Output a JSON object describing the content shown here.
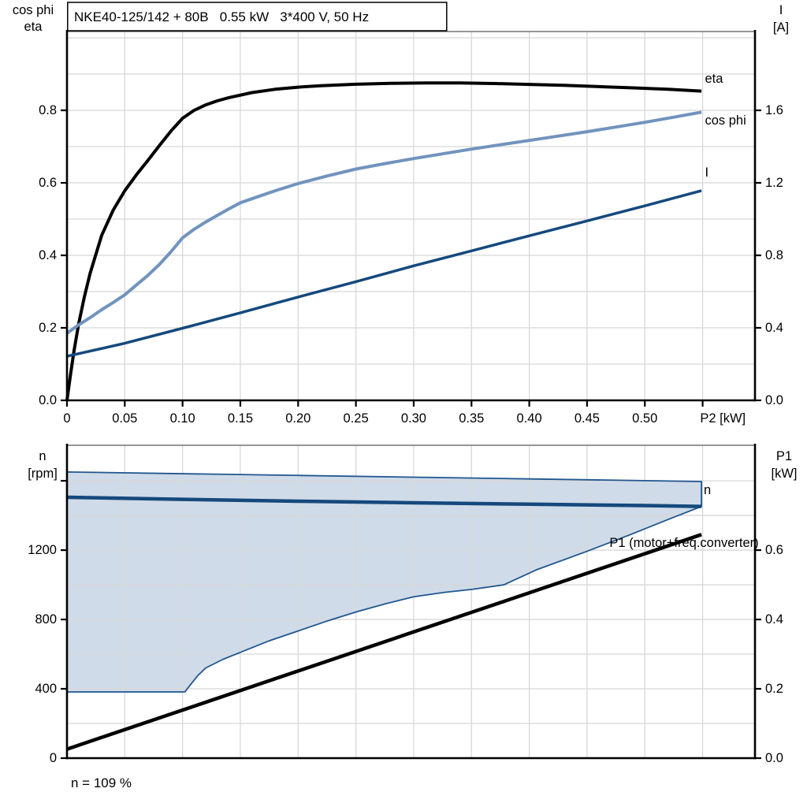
{
  "panel": {
    "background": "#ffffff"
  },
  "colors": {
    "black": "#000000",
    "steel_blue": "#7193BE",
    "dark_blue": "#15497D",
    "region_fill": "#CFDBE8",
    "region_border": "#20568F",
    "grid": "#D8D8D8",
    "frame": "#595959"
  },
  "chart_data": [
    {
      "id": "top",
      "type": "line",
      "title": "NKE40-125/142 + 80B   0.55 kW   3*400 V, 50 Hz",
      "x_axis": {
        "label": "P2 [kW]",
        "label_x": 0.5675,
        "range": [
          0,
          0.5953
        ],
        "tick_labels": [
          "0",
          "0.05",
          "0.10",
          "0.15",
          "0.20",
          "0.25",
          "0.30",
          "0.35",
          "0.40",
          "0.45",
          "0.50"
        ],
        "ticks_unlabeled": [
          0.55
        ],
        "grid": [
          0.05,
          0.1,
          0.15,
          0.2,
          0.25,
          0.3,
          0.35,
          0.4,
          0.45,
          0.5,
          0.55
        ]
      },
      "left_axis": {
        "label_lines": [
          "cos phi",
          "eta"
        ],
        "range": [
          0,
          1.0174
        ],
        "tick_labels": [
          "0.0",
          "0.2",
          "0.4",
          "0.6",
          "0.8"
        ],
        "ticks_unlabeled": [],
        "grid": [
          0.1,
          0.2,
          0.3,
          0.4,
          0.5,
          0.6,
          0.7,
          0.8,
          0.9,
          1.0
        ]
      },
      "right_axis": {
        "label_lines": [
          "I",
          "[A]"
        ],
        "range": [
          0,
          2.0348
        ],
        "tick_labels": [
          "0.0",
          "0.4",
          "0.8",
          "1.2",
          "1.6"
        ],
        "ticks_unlabeled": []
      },
      "series": [
        {
          "name": "eta",
          "color": "#000000",
          "width": 4,
          "axis": "left",
          "label": {
            "text": "eta",
            "x": 0.552,
            "y": 0.887,
            "anchor": "start",
            "color": "#000000"
          },
          "points": [
            [
              0,
              0
            ],
            [
              0.003,
              0.07
            ],
            [
              0.006,
              0.135
            ],
            [
              0.01,
              0.21
            ],
            [
              0.015,
              0.285
            ],
            [
              0.02,
              0.35
            ],
            [
              0.03,
              0.455
            ],
            [
              0.04,
              0.525
            ],
            [
              0.05,
              0.578
            ],
            [
              0.06,
              0.622
            ],
            [
              0.07,
              0.662
            ],
            [
              0.08,
              0.703
            ],
            [
              0.09,
              0.743
            ],
            [
              0.1,
              0.778
            ],
            [
              0.11,
              0.8
            ],
            [
              0.12,
              0.815
            ],
            [
              0.13,
              0.826
            ],
            [
              0.14,
              0.835
            ],
            [
              0.16,
              0.849
            ],
            [
              0.18,
              0.858
            ],
            [
              0.2,
              0.864
            ],
            [
              0.22,
              0.868
            ],
            [
              0.25,
              0.872
            ],
            [
              0.28,
              0.8745
            ],
            [
              0.31,
              0.8755
            ],
            [
              0.34,
              0.8755
            ],
            [
              0.37,
              0.874
            ],
            [
              0.4,
              0.8715
            ],
            [
              0.43,
              0.869
            ],
            [
              0.46,
              0.8655
            ],
            [
              0.49,
              0.862
            ],
            [
              0.52,
              0.858
            ],
            [
              0.549,
              0.853
            ]
          ]
        },
        {
          "name": "cos phi",
          "color": "#7193BE",
          "width": 4,
          "axis": "left",
          "label": {
            "text": "cos phi",
            "x": 0.552,
            "y": 0.772,
            "anchor": "start",
            "color": "#7193BE"
          },
          "points": [
            [
              0,
              0.185
            ],
            [
              0.01,
              0.208
            ],
            [
              0.02,
              0.228
            ],
            [
              0.03,
              0.25
            ],
            [
              0.04,
              0.27
            ],
            [
              0.05,
              0.291
            ],
            [
              0.06,
              0.318
            ],
            [
              0.07,
              0.345
            ],
            [
              0.08,
              0.375
            ],
            [
              0.09,
              0.41
            ],
            [
              0.1,
              0.448
            ],
            [
              0.11,
              0.472
            ],
            [
              0.12,
              0.492
            ],
            [
              0.13,
              0.51
            ],
            [
              0.14,
              0.528
            ],
            [
              0.15,
              0.545
            ],
            [
              0.16,
              0.556
            ],
            [
              0.18,
              0.578
            ],
            [
              0.2,
              0.598
            ],
            [
              0.225,
              0.619
            ],
            [
              0.25,
              0.638
            ],
            [
              0.275,
              0.653
            ],
            [
              0.3,
              0.667
            ],
            [
              0.325,
              0.68
            ],
            [
              0.35,
              0.693
            ],
            [
              0.375,
              0.705
            ],
            [
              0.4,
              0.717
            ],
            [
              0.425,
              0.729
            ],
            [
              0.45,
              0.741
            ],
            [
              0.475,
              0.754
            ],
            [
              0.5,
              0.767
            ],
            [
              0.525,
              0.781
            ],
            [
              0.549,
              0.795
            ]
          ]
        },
        {
          "name": "I",
          "color": "#15497D",
          "width": 3.5,
          "axis": "right",
          "label": {
            "text": "I",
            "x": 0.552,
            "y": 1.257,
            "anchor": "start",
            "color": "#15497D"
          },
          "points": [
            [
              0,
              0.243
            ],
            [
              0.05,
              0.315
            ],
            [
              0.1,
              0.398
            ],
            [
              0.15,
              0.483
            ],
            [
              0.2,
              0.57
            ],
            [
              0.25,
              0.655
            ],
            [
              0.3,
              0.742
            ],
            [
              0.35,
              0.825
            ],
            [
              0.4,
              0.908
            ],
            [
              0.45,
              0.99
            ],
            [
              0.5,
              1.073
            ],
            [
              0.549,
              1.157
            ]
          ]
        }
      ]
    },
    {
      "id": "bottom",
      "type": "line",
      "footnote": "n = 109 %",
      "x_axis": {
        "range": [
          0,
          0.5953
        ],
        "tick_labels": [],
        "ticks_unlabeled": [],
        "grid": [
          0.05,
          0.1,
          0.15,
          0.2,
          0.25,
          0.3,
          0.35,
          0.4,
          0.45,
          0.5,
          0.55
        ]
      },
      "left_axis": {
        "label_lines": [
          "n",
          "[rpm]"
        ],
        "range": [
          0,
          1805
        ],
        "tick_labels": [
          "0",
          "400",
          "800",
          "1200"
        ],
        "ticks_unlabeled": [
          1600
        ],
        "grid": [
          200,
          400,
          600,
          800,
          1000,
          1200,
          1400,
          1600
        ]
      },
      "right_axis": {
        "label_lines": [
          "P1",
          "[kW]"
        ],
        "range": [
          0,
          0.9025
        ],
        "tick_labels": [
          "0.0",
          "0.2",
          "0.4",
          "0.6"
        ],
        "ticks_unlabeled": []
      },
      "region": {
        "name": "speed-control-range",
        "fill": "#CFDBE8",
        "border_color": "#20568F",
        "border_width": 1.8,
        "upper": [
          [
            0,
            1651
          ],
          [
            0.2,
            1631
          ],
          [
            0.4,
            1611
          ],
          [
            0.549,
            1596
          ]
        ],
        "lower": [
          [
            0,
            382
          ],
          [
            0.102,
            382
          ],
          [
            0.107,
            425
          ],
          [
            0.113,
            475
          ],
          [
            0.12,
            520
          ],
          [
            0.135,
            570
          ],
          [
            0.151,
            613
          ],
          [
            0.175,
            677
          ],
          [
            0.201,
            736
          ],
          [
            0.226,
            793
          ],
          [
            0.251,
            845
          ],
          [
            0.276,
            891
          ],
          [
            0.3,
            931
          ],
          [
            0.326,
            956
          ],
          [
            0.351,
            974
          ],
          [
            0.378,
            1000
          ],
          [
            0.406,
            1086
          ],
          [
            0.449,
            1191
          ],
          [
            0.488,
            1291
          ],
          [
            0.522,
            1382
          ],
          [
            0.549,
            1452
          ]
        ]
      },
      "series": [
        {
          "name": "n",
          "color": "#15497D",
          "width": 4.5,
          "axis": "left",
          "label": {
            "text": "n",
            "x": 0.551,
            "y": 1545,
            "anchor": "start",
            "color": "#15497D"
          },
          "points": [
            [
              0,
              1505
            ],
            [
              0.1,
              1493
            ],
            [
              0.2,
              1482
            ],
            [
              0.3,
              1473
            ],
            [
              0.4,
              1465
            ],
            [
              0.5,
              1457
            ],
            [
              0.549,
              1452
            ]
          ]
        },
        {
          "name": "P1 (motor+freq.converter)",
          "color": "#000000",
          "width": 4.5,
          "axis": "right",
          "label": {
            "text": "P1 (motor+freq.converter)",
            "x": 0.5985,
            "y": 0.6205,
            "anchor": "end",
            "color": "#000000"
          },
          "points": [
            [
              0,
              0.026
            ],
            [
              0.549,
              0.645
            ]
          ]
        }
      ]
    }
  ]
}
